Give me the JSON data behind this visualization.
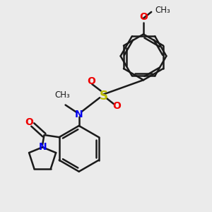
{
  "bg_color": "#ebebeb",
  "bond_color": "#1a1a1a",
  "bond_width": 1.8,
  "N_color": "#0000ee",
  "O_color": "#ee0000",
  "S_color": "#bbbb00",
  "font_size": 10,
  "fig_width": 3.0,
  "fig_height": 3.0,
  "dpi": 100,
  "xlim": [
    0,
    10
  ],
  "ylim": [
    0,
    10
  ]
}
